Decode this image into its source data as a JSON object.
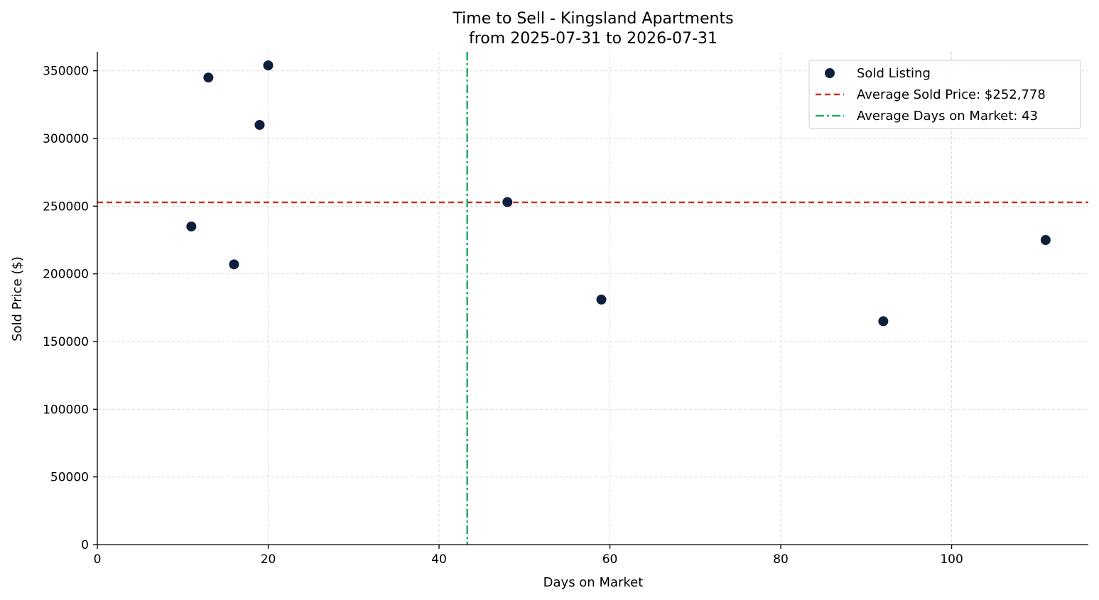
{
  "chart_data": {
    "type": "scatter",
    "title": "Time to Sell - Kingsland Apartments",
    "subtitle": "from 2025-07-31 to 2026-07-31",
    "xlabel": "Days on Market",
    "ylabel": "Sold Price ($)",
    "xlim": [
      0,
      116
    ],
    "ylim": [
      0,
      364000
    ],
    "x_ticks": [
      0,
      20,
      40,
      60,
      80,
      100
    ],
    "y_ticks": [
      0,
      50000,
      100000,
      150000,
      200000,
      250000,
      300000,
      350000
    ],
    "x_tick_labels": [
      "0",
      "20",
      "40",
      "60",
      "80",
      "100"
    ],
    "y_tick_labels": [
      "0",
      "50000",
      "100000",
      "150000",
      "200000",
      "250000",
      "300000",
      "350000"
    ],
    "grid": true,
    "legend_position": "top-right",
    "series": [
      {
        "name": "Sold Listing",
        "color": "#0d1f3c",
        "points": [
          {
            "x": 11,
            "y": 235000
          },
          {
            "x": 13,
            "y": 345000
          },
          {
            "x": 16,
            "y": 207000
          },
          {
            "x": 19,
            "y": 310000
          },
          {
            "x": 20,
            "y": 354000
          },
          {
            "x": 48,
            "y": 253000
          },
          {
            "x": 59,
            "y": 181000
          },
          {
            "x": 92,
            "y": 165000
          },
          {
            "x": 111,
            "y": 225000
          }
        ]
      }
    ],
    "reference_lines": [
      {
        "name": "Average Sold Price: $252,778",
        "orientation": "horizontal",
        "value": 252778,
        "color": "#c0392b",
        "style": "dashed"
      },
      {
        "name": "Average Days on Market: 43",
        "orientation": "vertical",
        "value": 43.3,
        "color": "#27ae60",
        "style": "dashdot"
      }
    ]
  }
}
